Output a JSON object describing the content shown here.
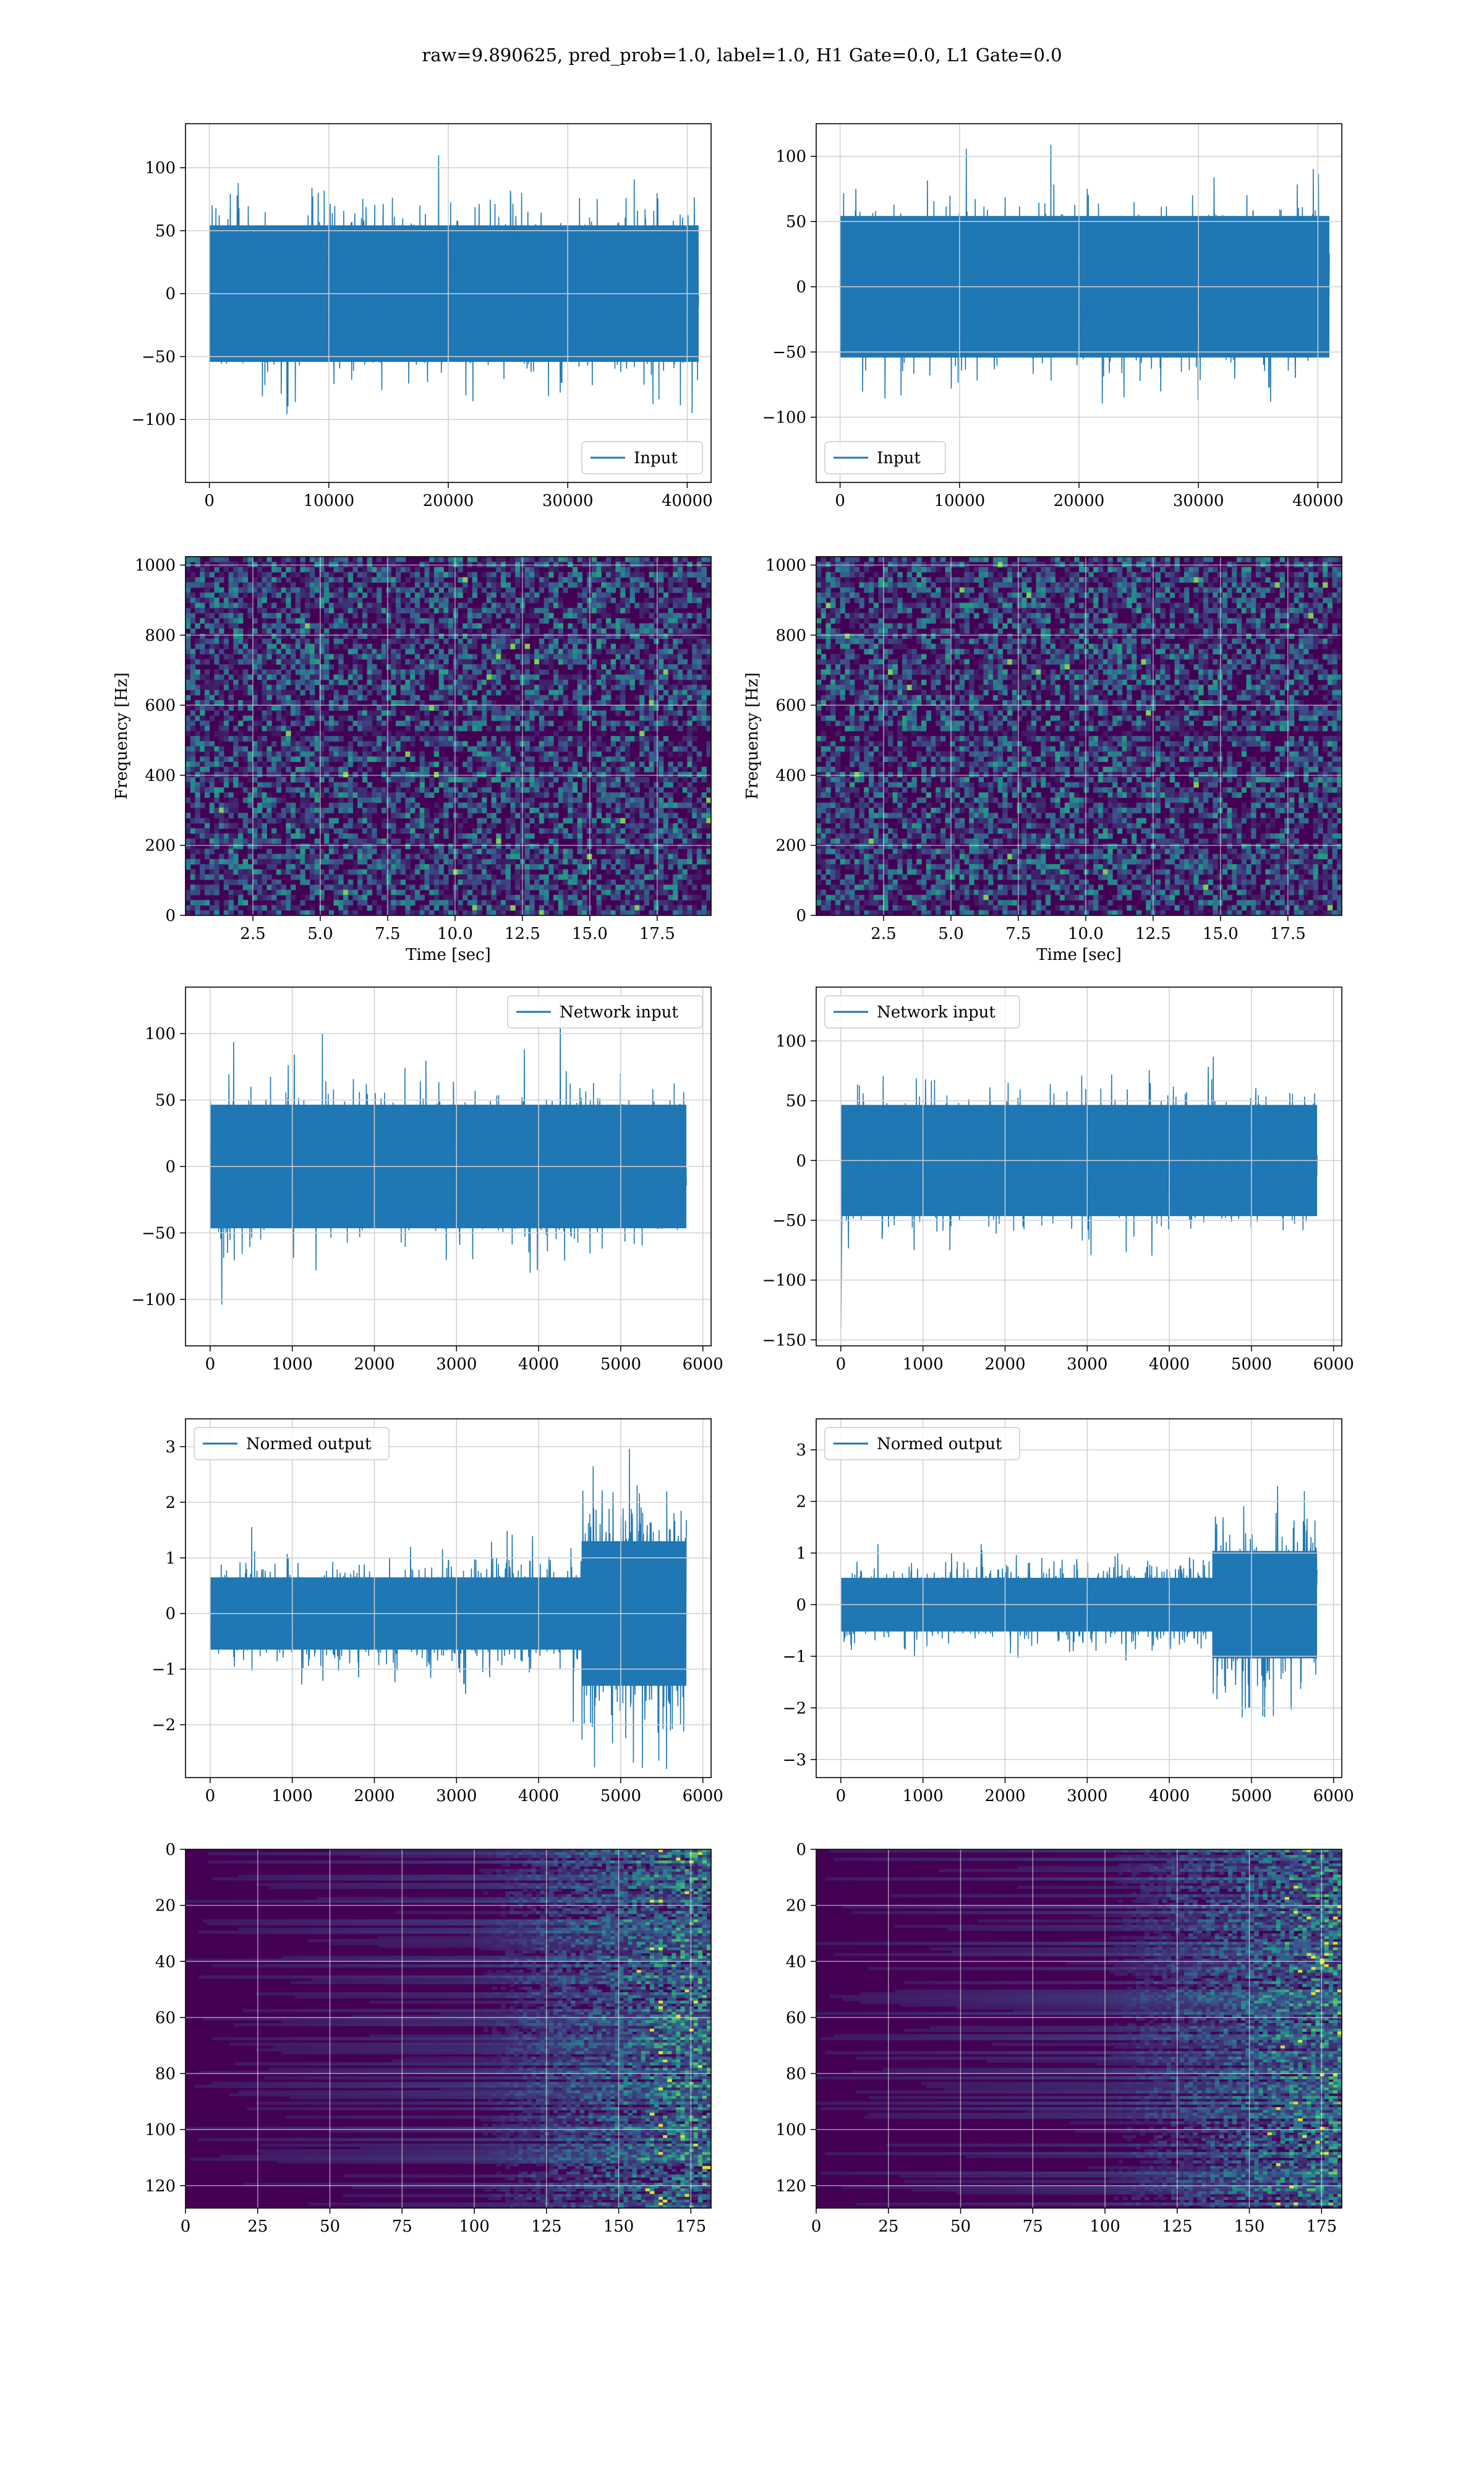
{
  "figure_title": "raw=9.890625, pred_prob=1.0, label=1.0, H1 Gate=0.0, L1 Gate=0.0",
  "colors": {
    "line": "#1f77b4",
    "grid": "#d0d0d0",
    "spec_bg": "#440154",
    "spec_mid": "#3b528b",
    "spec_teal": "#21918c",
    "spec_hi": "#fde725"
  },
  "chart_data": [
    {
      "id": "input-h1",
      "type": "line",
      "row": 0,
      "col": 0,
      "legend": "Input",
      "legend_loc": "lower right",
      "xlim": [
        -2000,
        42000
      ],
      "ylim": [
        -150,
        135
      ],
      "xticks": [
        0,
        10000,
        20000,
        30000,
        40000
      ],
      "yticks": [
        -100,
        -50,
        0,
        50,
        100
      ],
      "xlabel": "",
      "ylabel": "",
      "signal": {
        "n": 40960,
        "env": "flat",
        "body": 35,
        "spike": 1.0,
        "seed": 11,
        "tail": "none"
      }
    },
    {
      "id": "input-l1",
      "type": "line",
      "row": 0,
      "col": 1,
      "legend": "Input",
      "legend_loc": "lower left",
      "xlim": [
        -2000,
        42000
      ],
      "ylim": [
        -150,
        125
      ],
      "xticks": [
        0,
        10000,
        20000,
        30000,
        40000
      ],
      "yticks": [
        -100,
        -50,
        0,
        50,
        100
      ],
      "xlabel": "",
      "ylabel": "",
      "signal": {
        "n": 40960,
        "env": "flat",
        "body": 35,
        "spike": 1.0,
        "seed": 23,
        "tail": "none"
      }
    },
    {
      "id": "spectrogram-h1",
      "type": "heatmap",
      "row": 1,
      "col": 0,
      "xlim": [
        0,
        19.5
      ],
      "ylim": [
        0,
        1024
      ],
      "xticks": [
        2.5,
        5.0,
        7.5,
        10.0,
        12.5,
        15.0,
        17.5
      ],
      "xtick_labels": [
        "2.5",
        "5.0",
        "7.5",
        "10.0",
        "12.5",
        "15.0",
        "17.5"
      ],
      "yticks": [
        0,
        200,
        400,
        600,
        800,
        1000
      ],
      "xlabel": "Time [sec]",
      "ylabel": "Frequency [Hz]",
      "heat": {
        "kind": "noise",
        "seed": 5
      }
    },
    {
      "id": "spectrogram-l1",
      "type": "heatmap",
      "row": 1,
      "col": 1,
      "xlim": [
        0,
        19.5
      ],
      "ylim": [
        0,
        1024
      ],
      "xticks": [
        2.5,
        5.0,
        7.5,
        10.0,
        12.5,
        15.0,
        17.5
      ],
      "xtick_labels": [
        "2.5",
        "5.0",
        "7.5",
        "10.0",
        "12.5",
        "15.0",
        "17.5"
      ],
      "yticks": [
        0,
        200,
        400,
        600,
        800,
        1000
      ],
      "xlabel": "Time [sec]",
      "ylabel": "Frequency [Hz]",
      "heat": {
        "kind": "noise",
        "seed": 9
      }
    },
    {
      "id": "network-input-h1",
      "type": "line",
      "row": 2,
      "col": 0,
      "legend": "Network input",
      "legend_loc": "upper right",
      "xlim": [
        -300,
        6100
      ],
      "ylim": [
        -135,
        135
      ],
      "xticks": [
        0,
        1000,
        2000,
        3000,
        4000,
        5000,
        6000
      ],
      "yticks": [
        -100,
        -50,
        0,
        50,
        100
      ],
      "xlabel": "",
      "ylabel": "",
      "signal": {
        "n": 5800,
        "env": "flat",
        "body": 30,
        "spike": 1.0,
        "seed": 31,
        "tail": "none"
      }
    },
    {
      "id": "network-input-l1",
      "type": "line",
      "row": 2,
      "col": 1,
      "legend": "Network input",
      "legend_loc": "upper left",
      "xlim": [
        -300,
        6100
      ],
      "ylim": [
        -155,
        145
      ],
      "xticks": [
        0,
        1000,
        2000,
        3000,
        4000,
        5000,
        6000
      ],
      "yticks": [
        -150,
        -100,
        -50,
        0,
        50,
        100
      ],
      "xlabel": "",
      "ylabel": "",
      "signal": {
        "n": 5800,
        "env": "flat",
        "body": 30,
        "spike": 1.0,
        "seed": 37,
        "tail": "drop"
      }
    },
    {
      "id": "normed-output-h1",
      "type": "line",
      "row": 3,
      "col": 0,
      "legend": "Normed output",
      "legend_loc": "upper left",
      "xlim": [
        -300,
        6100
      ],
      "ylim": [
        -2.95,
        3.5
      ],
      "xticks": [
        0,
        1000,
        2000,
        3000,
        4000,
        5000,
        6000
      ],
      "yticks": [
        -2,
        -1,
        0,
        1,
        2,
        3
      ],
      "xlabel": "",
      "ylabel": "",
      "signal": {
        "n": 5800,
        "env": "burst",
        "body": 0.5,
        "spike": 1.0,
        "seed": 41,
        "tail": "none"
      }
    },
    {
      "id": "normed-output-l1",
      "type": "line",
      "row": 3,
      "col": 1,
      "legend": "Normed output",
      "legend_loc": "upper left",
      "xlim": [
        -300,
        6100
      ],
      "ylim": [
        -3.35,
        3.6
      ],
      "xticks": [
        0,
        1000,
        2000,
        3000,
        4000,
        5000,
        6000
      ],
      "yticks": [
        -3,
        -2,
        -1,
        0,
        1,
        2,
        3
      ],
      "xlabel": "",
      "ylabel": "",
      "signal": {
        "n": 5800,
        "env": "burst",
        "body": 0.4,
        "spike": 1.0,
        "seed": 43,
        "tail": "none"
      }
    },
    {
      "id": "feature-map-h1",
      "type": "heatmap",
      "row": 4,
      "col": 0,
      "xlim": [
        0,
        182
      ],
      "ylim": [
        128,
        0
      ],
      "xticks": [
        0,
        25,
        50,
        75,
        100,
        125,
        150,
        175
      ],
      "yticks": [
        0,
        20,
        40,
        60,
        80,
        100,
        120
      ],
      "xlabel": "",
      "ylabel": "",
      "heat": {
        "kind": "stripes",
        "seed": 13
      }
    },
    {
      "id": "feature-map-l1",
      "type": "heatmap",
      "row": 4,
      "col": 1,
      "xlim": [
        0,
        182
      ],
      "ylim": [
        128,
        0
      ],
      "xticks": [
        0,
        25,
        50,
        75,
        100,
        125,
        150,
        175
      ],
      "yticks": [
        0,
        20,
        40,
        60,
        80,
        100,
        120
      ],
      "xlabel": "",
      "ylabel": "",
      "heat": {
        "kind": "stripes",
        "seed": 17
      }
    }
  ]
}
